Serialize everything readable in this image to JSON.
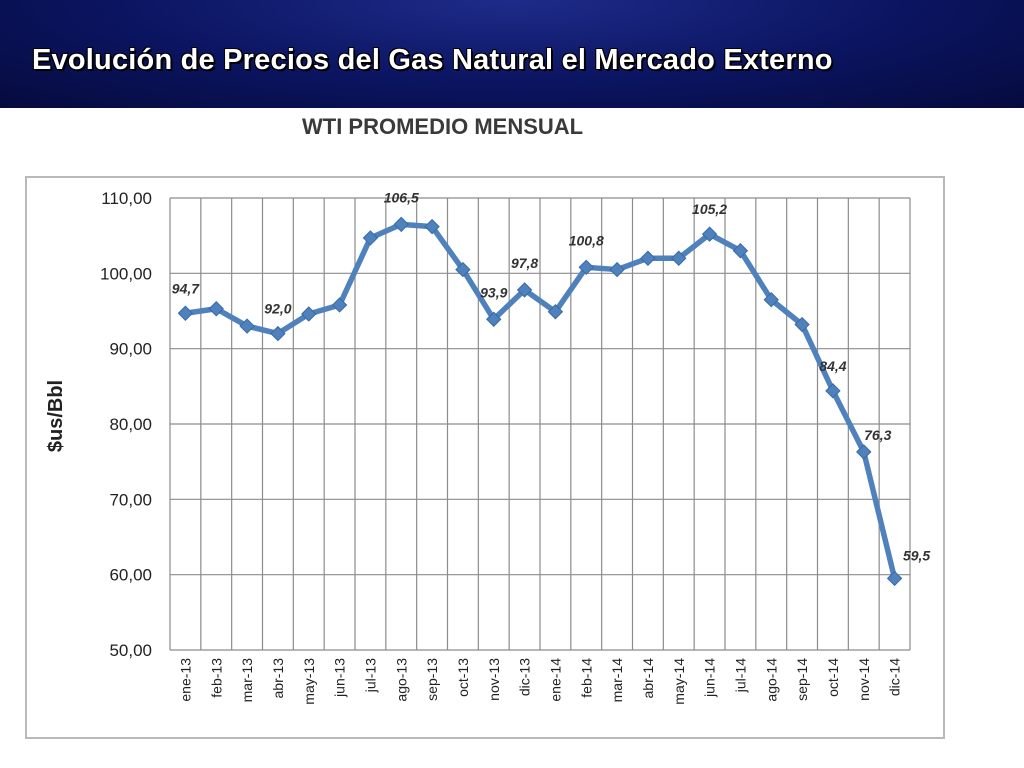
{
  "header": {
    "title": "Evolución de Precios del Gas Natural el Mercado Externo"
  },
  "chart_data": {
    "type": "line",
    "title": "WTI PROMEDIO MENSUAL",
    "xlabel": "",
    "ylabel": "$us/Bbl",
    "ylim": [
      50,
      110
    ],
    "yticks": [
      "50,00",
      "60,00",
      "70,00",
      "80,00",
      "90,00",
      "100,00",
      "110,00"
    ],
    "grid": true,
    "categories": [
      "ene-13",
      "feb-13",
      "mar-13",
      "abr-13",
      "may-13",
      "jun-13",
      "jul-13",
      "ago-13",
      "sep-13",
      "oct-13",
      "nov-13",
      "dic-13",
      "ene-14",
      "feb-14",
      "mar-14",
      "abr-14",
      "may-14",
      "jun-14",
      "jul-14",
      "ago-14",
      "sep-14",
      "oct-14",
      "nov-14",
      "dic-14"
    ],
    "series": [
      {
        "values": [
          94.7,
          95.3,
          93.0,
          92.0,
          94.6,
          95.8,
          104.7,
          106.5,
          106.2,
          100.5,
          93.9,
          97.8,
          94.9,
          100.8,
          100.5,
          102.0,
          102.0,
          105.2,
          103.0,
          96.5,
          93.2,
          84.4,
          76.3,
          59.5
        ],
        "color": "#4f81bd"
      }
    ],
    "data_labels": [
      {
        "index": 0,
        "text": "94,7"
      },
      {
        "index": 3,
        "text": "92,0"
      },
      {
        "index": 7,
        "text": "106,5"
      },
      {
        "index": 10,
        "text": "93,9"
      },
      {
        "index": 11,
        "text": "97,8"
      },
      {
        "index": 13,
        "text": "100,8"
      },
      {
        "index": 17,
        "text": "105,2"
      },
      {
        "index": 21,
        "text": "84,4"
      },
      {
        "index": 22,
        "text": "76,3"
      },
      {
        "index": 23,
        "text": "59,5"
      }
    ]
  }
}
